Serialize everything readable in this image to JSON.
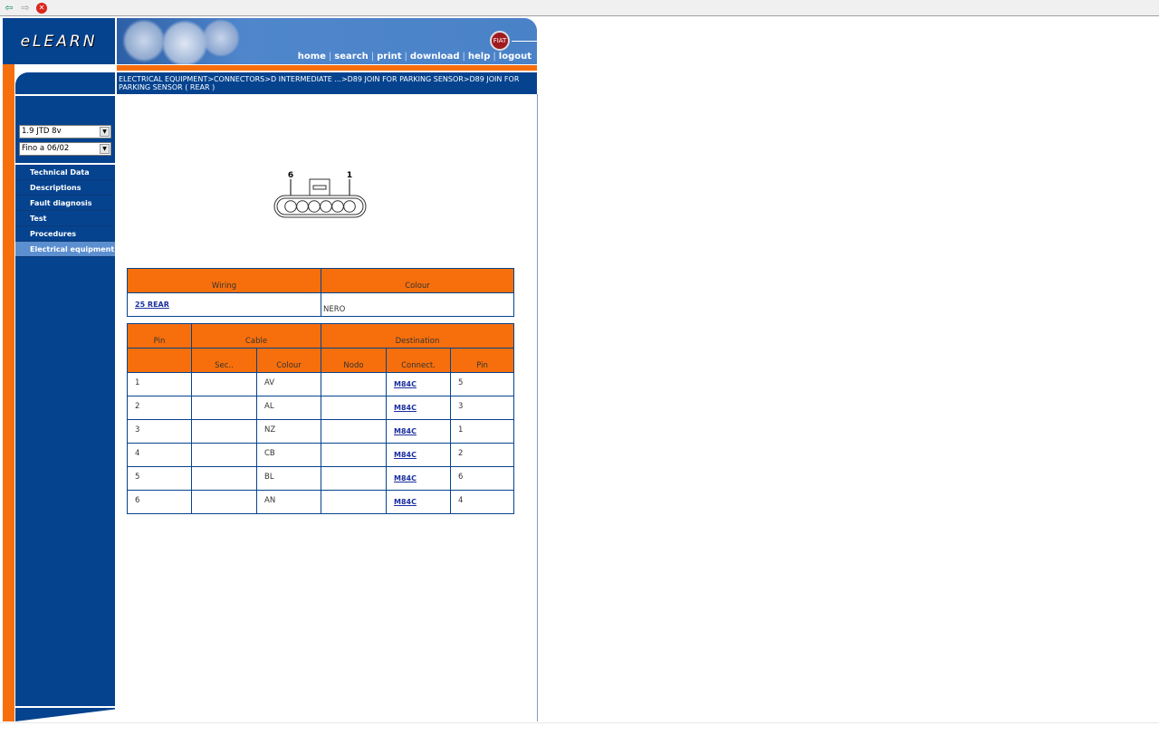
{
  "toolbar": {
    "back_icon": "back-arrow-icon",
    "forward_icon": "forward-arrow-icon",
    "stop_icon": "stop-icon"
  },
  "header": {
    "logo": "eLEARN",
    "brand": "FIAT",
    "nav": [
      "home",
      "search",
      "print",
      "download",
      "help",
      "logout"
    ]
  },
  "breadcrumb": "ELECTRICAL EQUIPMENT>CONNECTORS>D INTERMEDIATE ...>D89 JOIN FOR PARKING SENSOR>D89 JOIN FOR PARKING SENSOR ( REAR )",
  "sidebar": {
    "engine_select": "1.9 JTD 8v",
    "date_select": "Fino a 06/02",
    "items": [
      "Technical Data",
      "Descriptions",
      "Fault diagnosis",
      "Test",
      "Procedures",
      "Electrical equipment"
    ],
    "active": "Electrical equipment"
  },
  "connector": {
    "pin_left": "6",
    "pin_right": "1",
    "pin_count": 6
  },
  "wiring_table": {
    "headers": [
      "Wiring",
      "Colour"
    ],
    "row": {
      "wiring": "25 REAR",
      "colour": "NERO"
    }
  },
  "pin_table": {
    "group_headers": [
      "Pin",
      "Cable",
      "Destination"
    ],
    "sub_headers": [
      "",
      "Sec..",
      "Colour",
      "Nodo",
      "Connect.",
      "Pin"
    ],
    "rows": [
      {
        "pin": "1",
        "sec": "",
        "colour": "AV",
        "nodo": "",
        "connect": "M84C",
        "dest_pin": "5"
      },
      {
        "pin": "2",
        "sec": "",
        "colour": "AL",
        "nodo": "",
        "connect": "M84C",
        "dest_pin": "3"
      },
      {
        "pin": "3",
        "sec": "",
        "colour": "NZ",
        "nodo": "",
        "connect": "M84C",
        "dest_pin": "1"
      },
      {
        "pin": "4",
        "sec": "",
        "colour": "CB",
        "nodo": "",
        "connect": "M84C",
        "dest_pin": "2"
      },
      {
        "pin": "5",
        "sec": "",
        "colour": "BL",
        "nodo": "",
        "connect": "M84C",
        "dest_pin": "6"
      },
      {
        "pin": "6",
        "sec": "",
        "colour": "AN",
        "nodo": "",
        "connect": "M84C",
        "dest_pin": "4"
      }
    ]
  },
  "colors": {
    "blue": "#05438f",
    "orange": "#f76f0c",
    "active": "#5b8fcf"
  }
}
